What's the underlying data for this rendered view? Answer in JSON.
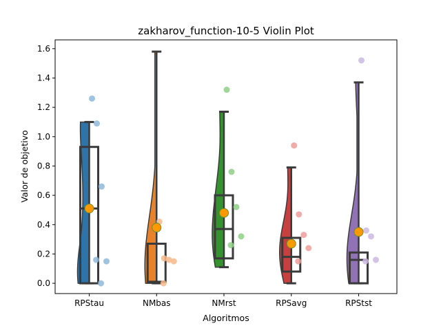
{
  "chart_data": {
    "type": "violin",
    "title": "zakharov_function-10-5 Violin Plot",
    "xlabel": "Algoritmos",
    "ylabel": "Valor de objetivo",
    "ylim": [
      -0.07,
      1.66
    ],
    "yticks": [
      0.0,
      0.2,
      0.4,
      0.6,
      0.8,
      1.0,
      1.2,
      1.4,
      1.6
    ],
    "ytick_labels": [
      "0.0",
      "0.2",
      "0.4",
      "0.6",
      "0.8",
      "1.0",
      "1.2",
      "1.4",
      "1.6"
    ],
    "categories": [
      "RPStau",
      "NMbas",
      "NMrst",
      "RPSavg",
      "RPStst"
    ],
    "series": [
      {
        "category": "RPStau",
        "color": "#2f74a8",
        "point_color": "#8fb8d9",
        "min": 0.0,
        "max": 1.1,
        "q1": 0.0,
        "median": 0.51,
        "q3": 0.93,
        "mean": 0.51,
        "points": [
          1.26,
          1.09,
          0.66,
          0.15,
          0.16,
          0.0
        ]
      },
      {
        "category": "NMbas",
        "color": "#e8822a",
        "point_color": "#f7b98a",
        "min": 0.0,
        "max": 1.58,
        "q1": 0.01,
        "median": 0.01,
        "q3": 0.27,
        "mean": 0.38,
        "points": [
          0.42,
          0.17,
          0.16,
          0.15,
          0.0
        ]
      },
      {
        "category": "NMrst",
        "color": "#35922f",
        "point_color": "#8fcf86",
        "min": 0.11,
        "max": 1.17,
        "q1": 0.17,
        "median": 0.37,
        "q3": 0.6,
        "mean": 0.48,
        "points": [
          1.32,
          0.76,
          0.52,
          0.32,
          0.26
        ]
      },
      {
        "category": "RPSavg",
        "color": "#c73f3f",
        "point_color": "#ee9c9a",
        "min": 0.0,
        "max": 0.79,
        "q1": 0.08,
        "median": 0.18,
        "q3": 0.31,
        "mean": 0.27,
        "points": [
          0.94,
          0.47,
          0.33,
          0.24,
          0.15
        ]
      },
      {
        "category": "RPStst",
        "color": "#9272b6",
        "point_color": "#cbb8e2",
        "min": 0.0,
        "max": 1.37,
        "q1": 0.0,
        "median": 0.16,
        "q3": 0.21,
        "mean": 0.35,
        "points": [
          1.52,
          0.36,
          0.32,
          0.16,
          0.15
        ]
      }
    ]
  }
}
